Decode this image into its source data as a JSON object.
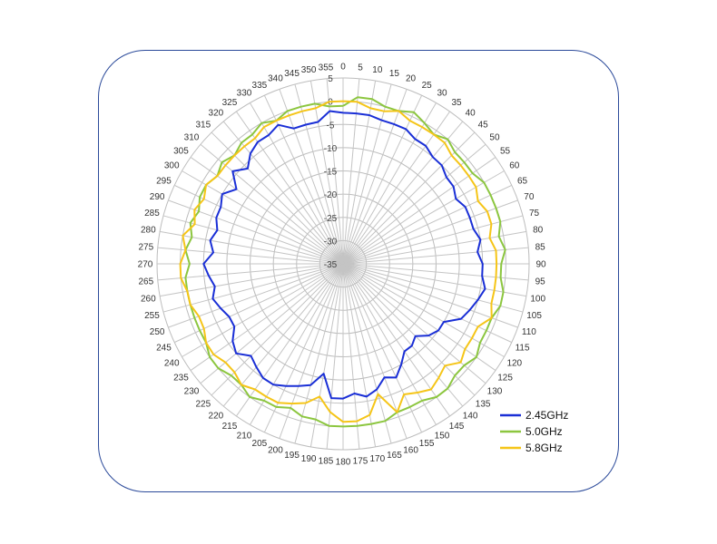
{
  "chart_data": {
    "type": "line",
    "subtype": "polar",
    "title": "",
    "grid": true,
    "legend_position": "bottom-right",
    "angle_ticks": [
      "0",
      "5",
      "10",
      "15",
      "20",
      "25",
      "30",
      "35",
      "40",
      "45",
      "50",
      "55",
      "60",
      "65",
      "70",
      "75",
      "80",
      "85",
      "90",
      "95",
      "100",
      "105",
      "110",
      "115",
      "120",
      "125",
      "130",
      "135",
      "140",
      "145",
      "150",
      "155",
      "160",
      "165",
      "170",
      "175",
      "180",
      "185",
      "190",
      "195",
      "200",
      "205",
      "210",
      "215",
      "220",
      "225",
      "230",
      "235",
      "240",
      "245",
      "250",
      "255",
      "260",
      "265",
      "270",
      "275",
      "280",
      "285",
      "290",
      "295",
      "300",
      "305",
      "310",
      "315",
      "320",
      "325",
      "330",
      "335",
      "340",
      "345",
      "350",
      "355"
    ],
    "radial_ticks": [
      "5",
      "0",
      "-5",
      "-10",
      "-15",
      "-20",
      "-25",
      "-30",
      "-35"
    ],
    "rlim": [
      -35,
      5
    ],
    "angles": [
      0,
      5,
      10,
      15,
      20,
      25,
      30,
      35,
      40,
      45,
      50,
      55,
      60,
      65,
      70,
      75,
      80,
      85,
      90,
      95,
      100,
      105,
      110,
      115,
      120,
      125,
      130,
      135,
      140,
      145,
      150,
      155,
      160,
      165,
      170,
      175,
      180,
      185,
      190,
      195,
      200,
      205,
      210,
      215,
      220,
      225,
      230,
      235,
      240,
      245,
      250,
      255,
      260,
      265,
      270,
      275,
      280,
      285,
      290,
      295,
      300,
      305,
      310,
      315,
      320,
      325,
      330,
      335,
      340,
      345,
      350,
      355
    ],
    "series": [
      {
        "name": "2.45GHz",
        "color": "#1a2fd6",
        "values": [
          -2.5,
          -2.5,
          -2.5,
          -3,
          -3,
          -3,
          -4,
          -4,
          -5,
          -5,
          -6,
          -6,
          -7,
          -6,
          -6,
          -6,
          -5,
          -6,
          -5,
          -5,
          -4,
          -5,
          -6,
          -7,
          -10,
          -10,
          -11,
          -13,
          -12,
          -12,
          -10,
          -8,
          -9,
          -7,
          -6,
          -7,
          -6,
          -6,
          -11,
          -8,
          -7,
          -6,
          -5,
          -5,
          -6,
          -7,
          -5,
          -6,
          -8,
          -8,
          -7,
          -6,
          -7,
          -6,
          -5,
          -7,
          -6,
          -7,
          -6,
          -6,
          -5,
          -7,
          -4,
          -6,
          -4,
          -3,
          -3,
          -2,
          -4,
          -4,
          -4,
          -2
        ]
      },
      {
        "name": "5.0GHz",
        "color": "#8cc63f",
        "values": [
          -1,
          1,
          1,
          0,
          0,
          1,
          0,
          -1,
          0,
          -1,
          -1,
          -1,
          0,
          0,
          0,
          0,
          -1,
          0,
          -1,
          -1,
          0,
          0,
          -1,
          -1,
          -1,
          0,
          -1,
          -1,
          0,
          0,
          -1,
          -1,
          -1,
          0,
          0,
          0,
          0,
          0,
          -1,
          -1,
          -2,
          -1,
          -1,
          0,
          -1,
          -1,
          0,
          0,
          -1,
          -1,
          -1,
          -1,
          -1,
          -1,
          -2,
          -1,
          -2,
          -1,
          -2,
          -1,
          -1,
          -2,
          -1,
          -2,
          -1,
          -1,
          0,
          -1,
          0,
          0,
          0,
          -1
        ]
      },
      {
        "name": "5.8GHz",
        "color": "#f5c518",
        "values": [
          0,
          0,
          -1,
          -1,
          0,
          -1,
          -1,
          -1,
          -1,
          -2,
          -2,
          -2,
          -2,
          -3,
          -2,
          -2,
          -3,
          -2,
          -2,
          -2,
          -2,
          -2,
          -1,
          -3,
          -3,
          -3,
          -2,
          -4,
          -3,
          -2,
          -3,
          -4,
          -1,
          -6,
          -2,
          -1,
          -1,
          -3,
          -6,
          -4,
          -3,
          -2,
          -2,
          -2,
          -1,
          -2,
          -2,
          -1,
          -1,
          -2,
          -2,
          -1,
          -1,
          0,
          0,
          -1,
          0,
          -2,
          -1,
          -2,
          -1,
          -2,
          -2,
          -2,
          -2,
          -2,
          -1,
          -1,
          -1,
          -1,
          -1,
          0
        ]
      }
    ]
  }
}
